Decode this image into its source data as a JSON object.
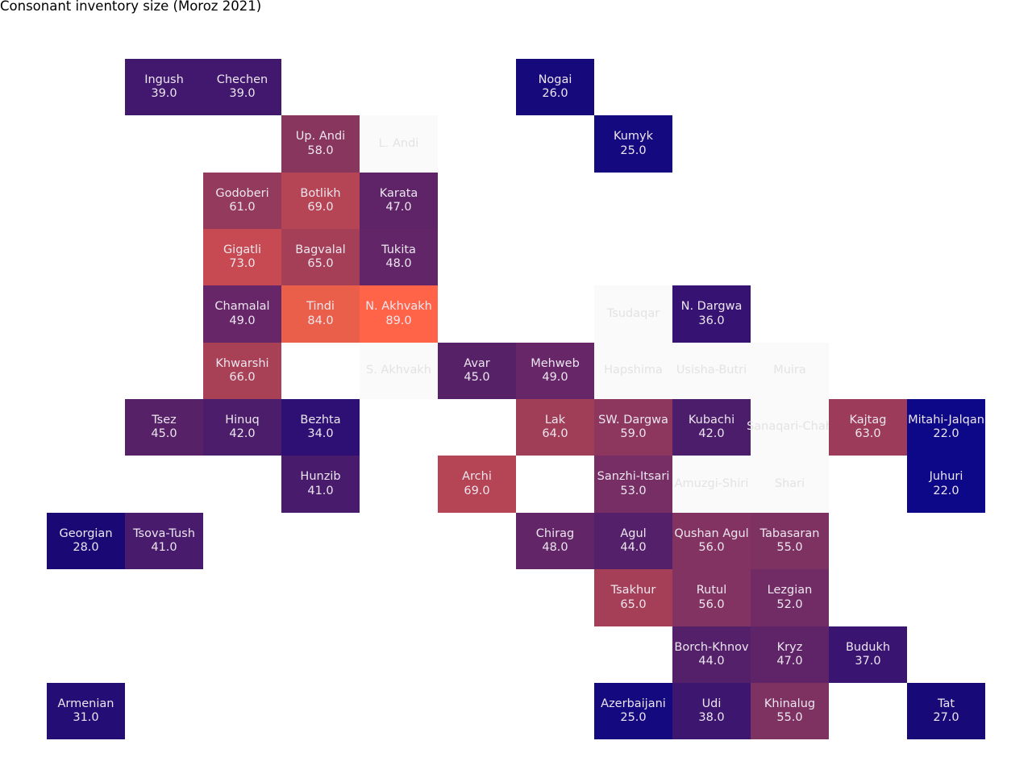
{
  "chart_data": {
    "type": "heatmap",
    "title": "Consonant inventory size (Moroz 2021)",
    "colormap": "plasma-like (dark blue → purple → orange)",
    "vmin": 22.0,
    "vmax": 89.0,
    "missing_color": "#fafafa",
    "cells": [
      {
        "name": "Ingush",
        "value": 39.0,
        "col": 1,
        "row": 0
      },
      {
        "name": "Chechen",
        "value": 39.0,
        "col": 2,
        "row": 0
      },
      {
        "name": "Nogai",
        "value": 26.0,
        "col": 6,
        "row": 0
      },
      {
        "name": "Up. Andi",
        "value": 58.0,
        "col": 3,
        "row": 1
      },
      {
        "name": "L. Andi",
        "value": null,
        "col": 4,
        "row": 1
      },
      {
        "name": "Kumyk",
        "value": 25.0,
        "col": 7,
        "row": 1
      },
      {
        "name": "Godoberi",
        "value": 61.0,
        "col": 2,
        "row": 2
      },
      {
        "name": "Botlikh",
        "value": 69.0,
        "col": 3,
        "row": 2
      },
      {
        "name": "Karata",
        "value": 47.0,
        "col": 4,
        "row": 2
      },
      {
        "name": "Gigatli",
        "value": 73.0,
        "col": 2,
        "row": 3
      },
      {
        "name": "Bagvalal",
        "value": 65.0,
        "col": 3,
        "row": 3
      },
      {
        "name": "Tukita",
        "value": 48.0,
        "col": 4,
        "row": 3
      },
      {
        "name": "Chamalal",
        "value": 49.0,
        "col": 2,
        "row": 4
      },
      {
        "name": "Tindi",
        "value": 84.0,
        "col": 3,
        "row": 4
      },
      {
        "name": "N. Akhvakh",
        "value": 89.0,
        "col": 4,
        "row": 4
      },
      {
        "name": "Tsudaqar",
        "value": null,
        "col": 7,
        "row": 4
      },
      {
        "name": "N. Dargwa",
        "value": 36.0,
        "col": 8,
        "row": 4
      },
      {
        "name": "Khwarshi",
        "value": 66.0,
        "col": 2,
        "row": 5
      },
      {
        "name": "S. Akhvakh",
        "value": null,
        "col": 4,
        "row": 5
      },
      {
        "name": "Avar",
        "value": 45.0,
        "col": 5,
        "row": 5
      },
      {
        "name": "Mehweb",
        "value": 49.0,
        "col": 6,
        "row": 5
      },
      {
        "name": "Hapshima",
        "value": null,
        "col": 7,
        "row": 5
      },
      {
        "name": "Usisha-Butri",
        "value": null,
        "col": 8,
        "row": 5
      },
      {
        "name": "Muira",
        "value": null,
        "col": 9,
        "row": 5
      },
      {
        "name": "Tsez",
        "value": 45.0,
        "col": 1,
        "row": 6
      },
      {
        "name": "Hinuq",
        "value": 42.0,
        "col": 2,
        "row": 6
      },
      {
        "name": "Bezhta",
        "value": 34.0,
        "col": 3,
        "row": 6
      },
      {
        "name": "Lak",
        "value": 64.0,
        "col": 6,
        "row": 6
      },
      {
        "name": "SW. Dargwa",
        "value": 59.0,
        "col": 7,
        "row": 6
      },
      {
        "name": "Kubachi",
        "value": 42.0,
        "col": 8,
        "row": 6
      },
      {
        "name": "Sanaqari-Chah",
        "value": null,
        "col": 9,
        "row": 6
      },
      {
        "name": "Kajtag",
        "value": 63.0,
        "col": 10,
        "row": 6
      },
      {
        "name": "Mitahi-Jalqan",
        "value": 22.0,
        "col": 11,
        "row": 6
      },
      {
        "name": "Hunzib",
        "value": 41.0,
        "col": 3,
        "row": 7
      },
      {
        "name": "Archi",
        "value": 69.0,
        "col": 5,
        "row": 7
      },
      {
        "name": "Sanzhi-Itsari",
        "value": 53.0,
        "col": 7,
        "row": 7
      },
      {
        "name": "Amuzgi-Shiri",
        "value": null,
        "col": 8,
        "row": 7
      },
      {
        "name": "Shari",
        "value": null,
        "col": 9,
        "row": 7
      },
      {
        "name": "Juhuri",
        "value": 22.0,
        "col": 11,
        "row": 7
      },
      {
        "name": "Georgian",
        "value": 28.0,
        "col": 0,
        "row": 8
      },
      {
        "name": "Tsova-Tush",
        "value": 41.0,
        "col": 1,
        "row": 8
      },
      {
        "name": "Chirag",
        "value": 48.0,
        "col": 6,
        "row": 8
      },
      {
        "name": "Agul",
        "value": 44.0,
        "col": 7,
        "row": 8
      },
      {
        "name": "Qushan Agul",
        "value": 56.0,
        "col": 8,
        "row": 8
      },
      {
        "name": "Tabasaran",
        "value": 55.0,
        "col": 9,
        "row": 8
      },
      {
        "name": "Tsakhur",
        "value": 65.0,
        "col": 7,
        "row": 9
      },
      {
        "name": "Rutul",
        "value": 56.0,
        "col": 8,
        "row": 9
      },
      {
        "name": "Lezgian",
        "value": 52.0,
        "col": 9,
        "row": 9
      },
      {
        "name": "Borch-Khnov",
        "value": 44.0,
        "col": 8,
        "row": 10
      },
      {
        "name": "Kryz",
        "value": 47.0,
        "col": 9,
        "row": 10
      },
      {
        "name": "Budukh",
        "value": 37.0,
        "col": 10,
        "row": 10
      },
      {
        "name": "Armenian",
        "value": 31.0,
        "col": 0,
        "row": 11
      },
      {
        "name": "Azerbaijani",
        "value": 25.0,
        "col": 7,
        "row": 11
      },
      {
        "name": "Udi",
        "value": 38.0,
        "col": 8,
        "row": 11
      },
      {
        "name": "Khinalug",
        "value": 55.0,
        "col": 9,
        "row": 11
      },
      {
        "name": "Tat",
        "value": 27.0,
        "col": 11,
        "row": 11
      }
    ]
  }
}
